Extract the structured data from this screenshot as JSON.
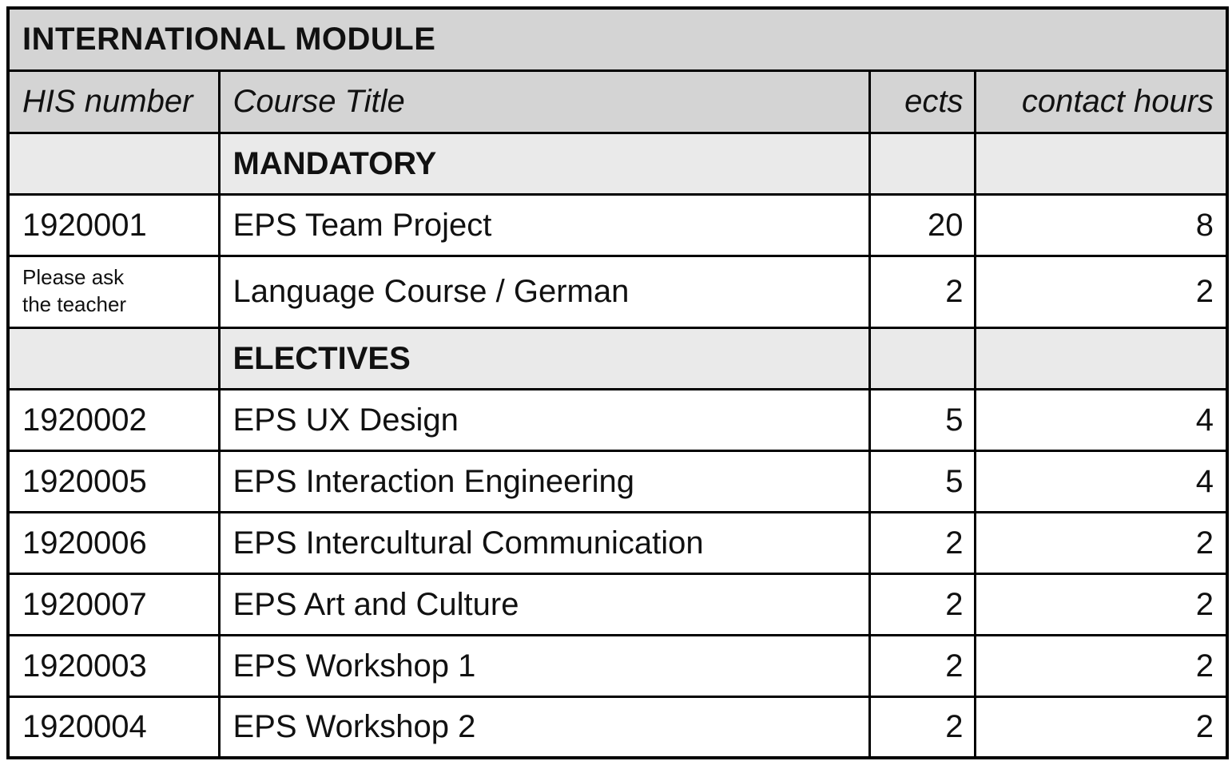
{
  "table": {
    "title": "INTERNATIONAL MODULE",
    "columns": [
      {
        "key": "his",
        "label": "HIS number"
      },
      {
        "key": "title",
        "label": "Course Title"
      },
      {
        "key": "ects",
        "label": "ects"
      },
      {
        "key": "hours",
        "label": "contact hours"
      }
    ],
    "sections": [
      {
        "label": "MANDATORY",
        "rows": [
          {
            "his": "1920001",
            "his_small": false,
            "title": "EPS Team Project",
            "ects": "20",
            "hours": "8",
            "tall": false
          },
          {
            "his": "Please ask\nthe teacher",
            "his_small": true,
            "title": "Language Course / German",
            "ects": "2",
            "hours": "2",
            "tall": true
          }
        ]
      },
      {
        "label": "ELECTIVES",
        "rows": [
          {
            "his": "1920002",
            "his_small": false,
            "title": "EPS UX Design",
            "ects": "5",
            "hours": "4",
            "tall": false
          },
          {
            "his": "1920005",
            "his_small": false,
            "title": "EPS Interaction Engineering",
            "ects": "5",
            "hours": "4",
            "tall": false
          },
          {
            "his": "1920006",
            "his_small": false,
            "title": "EPS Intercultural Communication",
            "ects": "2",
            "hours": "2",
            "tall": false
          },
          {
            "his": "1920007",
            "his_small": false,
            "title": "EPS Art and Culture",
            "ects": "2",
            "hours": "2",
            "tall": false
          },
          {
            "his": "1920003",
            "his_small": false,
            "title": "EPS Workshop 1",
            "ects": "2",
            "hours": "2",
            "tall": false
          },
          {
            "his": "1920004",
            "his_small": false,
            "title": "EPS Workshop 2",
            "ects": "2",
            "hours": "2",
            "tall": false
          }
        ]
      }
    ],
    "colors": {
      "header_bg": "#d4d4d4",
      "section_bg": "#eaeaea",
      "row_bg": "#ffffff",
      "border": "#000000"
    }
  }
}
